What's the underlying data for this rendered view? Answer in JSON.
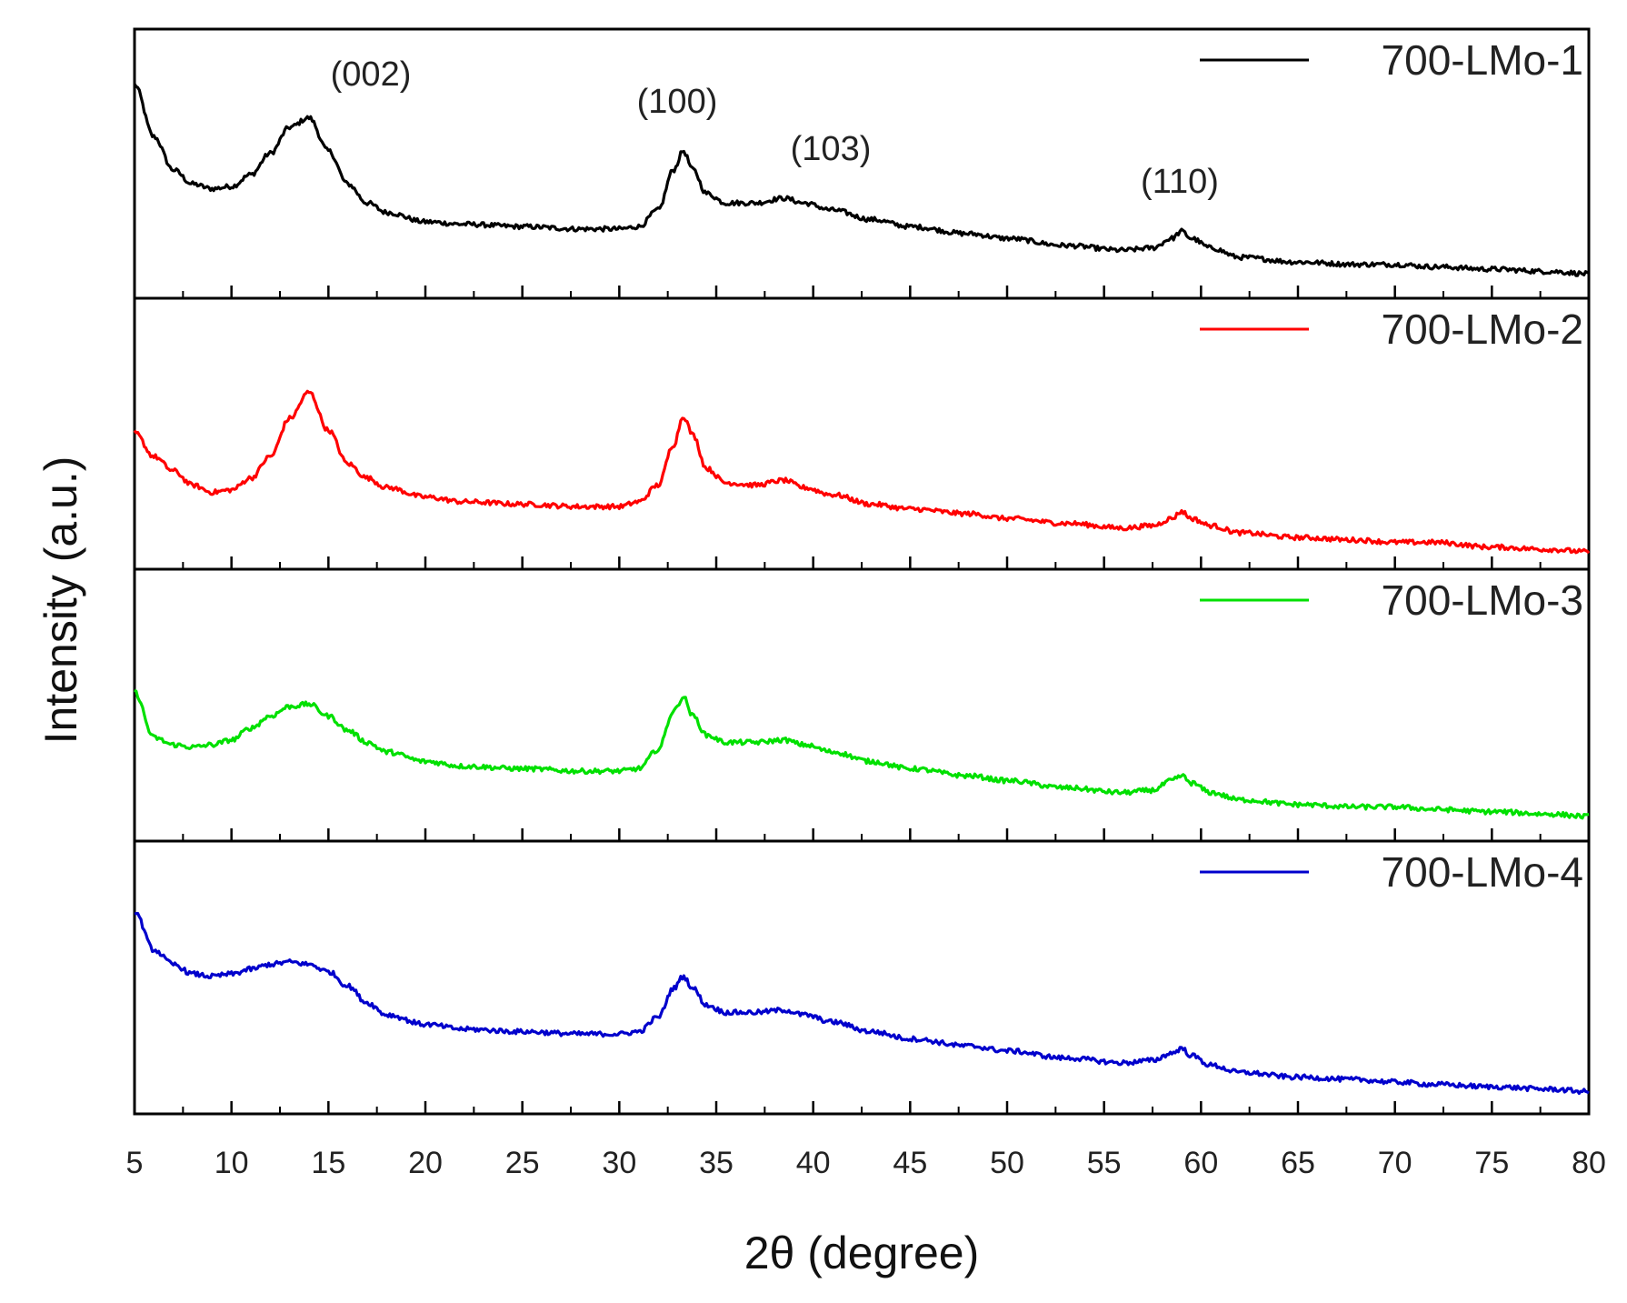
{
  "chart_data": {
    "type": "line",
    "title": "",
    "xlabel": "2θ (degree)",
    "ylabel": "Intensity (a.u.)",
    "xlim": [
      5,
      80
    ],
    "xticks": [
      5,
      10,
      15,
      20,
      25,
      30,
      35,
      40,
      45,
      50,
      55,
      60,
      65,
      70,
      75,
      80
    ],
    "xtick_labels": [
      "5",
      "10",
      "15",
      "20",
      "25",
      "30",
      "35",
      "40",
      "45",
      "50",
      "55",
      "60",
      "65",
      "70",
      "75",
      "80"
    ],
    "ylim": [
      0,
      1
    ],
    "grid": false,
    "legend_position": "top-right",
    "peak_labels": [
      {
        "text": "(002)",
        "x": 14
      },
      {
        "text": "(100)",
        "x": 33.3
      },
      {
        "text": "(103)",
        "x": 38.8
      },
      {
        "text": "(110)",
        "x": 59
      }
    ],
    "x": [
      5,
      6,
      7,
      8,
      9,
      10,
      11,
      12,
      13,
      14,
      15,
      16,
      17,
      18,
      20,
      22,
      25,
      28,
      30,
      31,
      32,
      32.8,
      33.3,
      33.8,
      34.5,
      35.5,
      37,
      38.5,
      39.5,
      41,
      43,
      45,
      48,
      50,
      53,
      56,
      57.5,
      58.5,
      59,
      59.5,
      60.5,
      62,
      65,
      68,
      70,
      72,
      75,
      78,
      80
    ],
    "series": [
      {
        "name": "700-LMo-1",
        "color": "#000000",
        "values": [
          0.88,
          0.66,
          0.52,
          0.46,
          0.44,
          0.45,
          0.5,
          0.59,
          0.7,
          0.74,
          0.6,
          0.46,
          0.38,
          0.34,
          0.3,
          0.29,
          0.28,
          0.27,
          0.27,
          0.28,
          0.35,
          0.52,
          0.6,
          0.52,
          0.42,
          0.38,
          0.38,
          0.4,
          0.38,
          0.35,
          0.31,
          0.28,
          0.25,
          0.23,
          0.2,
          0.18,
          0.19,
          0.23,
          0.26,
          0.23,
          0.19,
          0.15,
          0.13,
          0.12,
          0.12,
          0.11,
          0.1,
          0.09,
          0.08
        ]
      },
      {
        "name": "700-LMo-2",
        "color": "#ff0000",
        "values": [
          0.55,
          0.45,
          0.39,
          0.33,
          0.3,
          0.31,
          0.36,
          0.45,
          0.61,
          0.72,
          0.56,
          0.42,
          0.36,
          0.32,
          0.28,
          0.26,
          0.25,
          0.24,
          0.24,
          0.26,
          0.33,
          0.5,
          0.62,
          0.54,
          0.4,
          0.34,
          0.33,
          0.35,
          0.32,
          0.29,
          0.25,
          0.23,
          0.21,
          0.19,
          0.17,
          0.15,
          0.16,
          0.19,
          0.22,
          0.19,
          0.16,
          0.13,
          0.11,
          0.1,
          0.09,
          0.09,
          0.07,
          0.06,
          0.05
        ]
      },
      {
        "name": "700-LMo-3",
        "color": "#00e000",
        "values": [
          0.6,
          0.41,
          0.38,
          0.37,
          0.38,
          0.4,
          0.45,
          0.5,
          0.54,
          0.55,
          0.5,
          0.44,
          0.39,
          0.35,
          0.31,
          0.29,
          0.28,
          0.27,
          0.27,
          0.28,
          0.36,
          0.52,
          0.58,
          0.5,
          0.42,
          0.39,
          0.39,
          0.4,
          0.38,
          0.35,
          0.31,
          0.28,
          0.25,
          0.23,
          0.2,
          0.18,
          0.19,
          0.23,
          0.25,
          0.22,
          0.18,
          0.15,
          0.13,
          0.12,
          0.12,
          0.11,
          0.1,
          0.09,
          0.08
        ]
      },
      {
        "name": "700-LMo-4",
        "color": "#0000cc",
        "values": [
          0.82,
          0.66,
          0.6,
          0.56,
          0.55,
          0.56,
          0.58,
          0.6,
          0.61,
          0.6,
          0.57,
          0.51,
          0.44,
          0.39,
          0.35,
          0.33,
          0.32,
          0.31,
          0.31,
          0.32,
          0.38,
          0.5,
          0.55,
          0.5,
          0.43,
          0.4,
          0.4,
          0.41,
          0.39,
          0.36,
          0.32,
          0.29,
          0.26,
          0.24,
          0.21,
          0.19,
          0.2,
          0.23,
          0.25,
          0.22,
          0.18,
          0.15,
          0.13,
          0.12,
          0.11,
          0.1,
          0.09,
          0.08,
          0.07
        ]
      }
    ]
  }
}
